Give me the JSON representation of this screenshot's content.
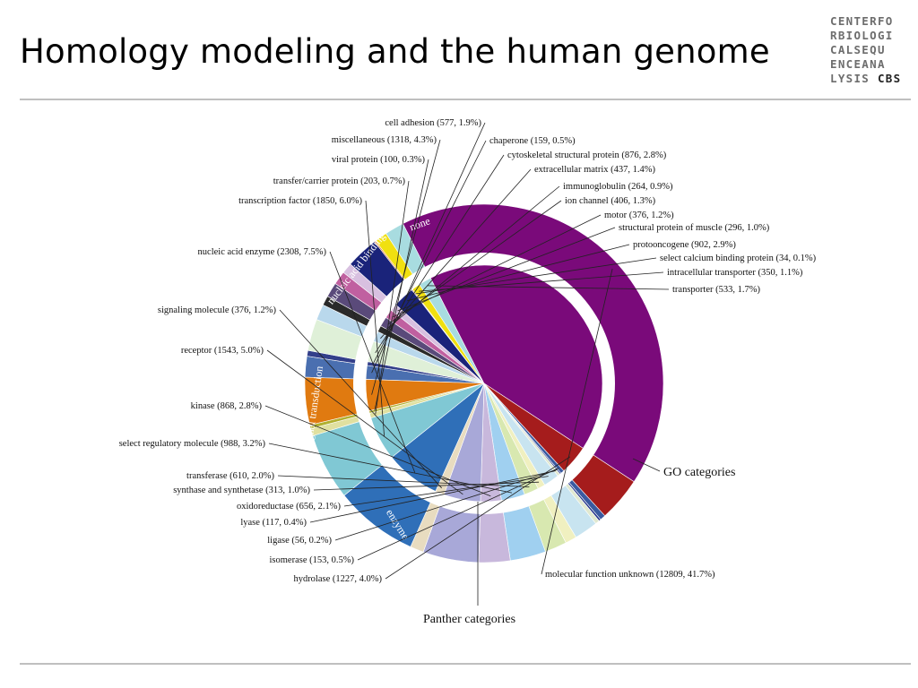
{
  "slide": {
    "title": "Homology modeling and the human genome",
    "logo_lines": [
      "CENTERFO",
      "RBIOLOGI",
      "CALSEQU",
      "ENCEANA",
      "LYSIS"
    ],
    "logo_bold": "CBS"
  },
  "chart_data": {
    "type": "pie",
    "ring_labels": {
      "outer": "GO categories",
      "inner": "Panther categories"
    },
    "panther_categories": [
      {
        "name": "none",
        "color": "#c9a9cc"
      },
      {
        "name": "nucleic acid binding",
        "color": "#1f4fa3"
      },
      {
        "name": "signal transduction",
        "color": "#2f8f8f"
      },
      {
        "name": "enzyme",
        "color": "#a51c1c"
      },
      {
        "name": "",
        "color": "#7a0a7a"
      }
    ],
    "slices": [
      {
        "label": "cell adhesion (577, 1.9%)",
        "value": 577,
        "percent": 1.9,
        "color": "#4a6fb0"
      },
      {
        "label": "chaperone (159, 0.5%)",
        "value": 159,
        "percent": 0.5,
        "color": "#333f8a"
      },
      {
        "label": "cytoskeletal structural protein (876, 2.8%)",
        "value": 876,
        "percent": 2.8,
        "color": "#dff0d8"
      },
      {
        "label": "extracellular matrix (437, 1.4%)",
        "value": 437,
        "percent": 1.4,
        "color": "#b9d8ec"
      },
      {
        "label": "immunoglobulin (264, 0.9%)",
        "value": 264,
        "percent": 0.9,
        "color": "#2a2a2a"
      },
      {
        "label": "ion channel (406, 1.3%)",
        "value": 406,
        "percent": 1.3,
        "color": "#5a4a7a"
      },
      {
        "label": "motor (376, 1.2%)",
        "value": 376,
        "percent": 1.2,
        "color": "#c060a0"
      },
      {
        "label": "structural protein of muscle (296, 1.0%)",
        "value": 296,
        "percent": 1.0,
        "color": "#d8c0e0"
      },
      {
        "label": "protooncogene (902, 2.9%)",
        "value": 902,
        "percent": 2.9,
        "color": "#1a237a"
      },
      {
        "label": "select calcium binding protein (34, 0.1%)",
        "value": 34,
        "percent": 0.1,
        "color": "#e07020"
      },
      {
        "label": "intracellular transporter (350, 1.1%)",
        "value": 350,
        "percent": 1.1,
        "color": "#f0e010"
      },
      {
        "label": "transporter (533, 1.7%)",
        "value": 533,
        "percent": 1.7,
        "color": "#a8dce0"
      },
      {
        "label": "molecular function unknown (12809, 41.7%)",
        "value": 12809,
        "percent": 41.7,
        "color": "#7a0a7a"
      },
      {
        "label": "hydrolase (1227, 4.0%)",
        "value": 1227,
        "percent": 4.0,
        "color": "#a51c1c"
      },
      {
        "label": "isomerase (153, 0.5%)",
        "value": 153,
        "percent": 0.5,
        "color": "#3a5aa0"
      },
      {
        "label": "ligase (56, 0.2%)",
        "value": 56,
        "percent": 0.2,
        "color": "#20308a"
      },
      {
        "label": "lyase (117, 0.4%)",
        "value": 117,
        "percent": 0.4,
        "color": "#e0e8d0"
      },
      {
        "label": "oxidoreductase (656, 2.1%)",
        "value": 656,
        "percent": 2.1,
        "color": "#c8e4f0"
      },
      {
        "label": "synthase and synthetase (313, 1.0%)",
        "value": 313,
        "percent": 1.0,
        "color": "#f0f0c0"
      },
      {
        "label": "transferase (610, 2.0%)",
        "value": 610,
        "percent": 2.0,
        "color": "#d8e8b0"
      },
      {
        "label": "select regulatory molecule (988, 3.2%)",
        "value": 988,
        "percent": 3.2,
        "color": "#a0d0f0"
      },
      {
        "label": "kinase (868, 2.8%)",
        "value": 868,
        "percent": 2.8,
        "color": "#c8b8dc"
      },
      {
        "label": "receptor (1543, 5.0%)",
        "value": 1543,
        "percent": 5.0,
        "color": "#a8a8d8"
      },
      {
        "label": "signaling molecule (376, 1.2%)",
        "value": 376,
        "percent": 1.2,
        "color": "#e8dcc0"
      },
      {
        "label": "nucleic acid enzyme (2308, 7.5%)",
        "value": 2308,
        "percent": 7.5,
        "color": "#2f6fb8"
      },
      {
        "label": "transcription factor (1850, 6.0%)",
        "value": 1850,
        "percent": 6.0,
        "color": "#80c8d4"
      },
      {
        "label": "transfer/carrier protein (203, 0.7%)",
        "value": 203,
        "percent": 0.7,
        "color": "#e0e0a0"
      },
      {
        "label": "viral protein (100, 0.3%)",
        "value": 100,
        "percent": 0.3,
        "color": "#b0b030"
      },
      {
        "label": "miscellaneous (1318, 4.3%)",
        "value": 1318,
        "percent": 4.3,
        "color": "#e07a10"
      }
    ]
  }
}
